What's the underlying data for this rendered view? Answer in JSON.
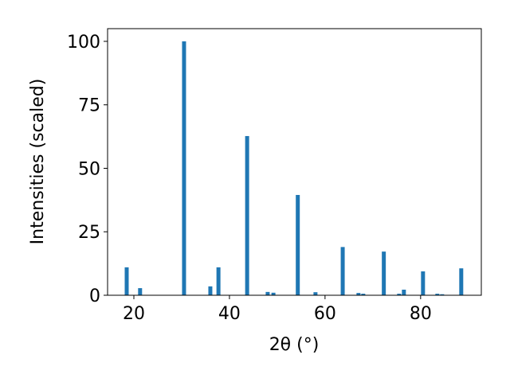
{
  "chart_data": {
    "type": "bar",
    "xlabel": "2θ (°)",
    "ylabel": "Intensities (scaled)",
    "x": [
      18.5,
      21.3,
      30.5,
      36.0,
      37.7,
      43.7,
      48.0,
      49.2,
      54.3,
      58.0,
      63.7,
      67.0,
      68.0,
      72.3,
      75.5,
      76.5,
      80.5,
      83.5,
      84.5,
      88.5
    ],
    "values": [
      11,
      2.8,
      100,
      3.5,
      11,
      62.7,
      1.3,
      1,
      39.5,
      1.2,
      19,
      0.9,
      0.6,
      17.2,
      0.6,
      2.2,
      9.4,
      0.6,
      0.4,
      10.6
    ],
    "color": "#1f77b4",
    "xlim": [
      14.5,
      92.7
    ],
    "xticks": [
      20,
      40,
      60,
      80
    ],
    "ylim": [
      0,
      105
    ],
    "yticks": [
      0,
      25,
      50,
      75,
      100
    ]
  }
}
